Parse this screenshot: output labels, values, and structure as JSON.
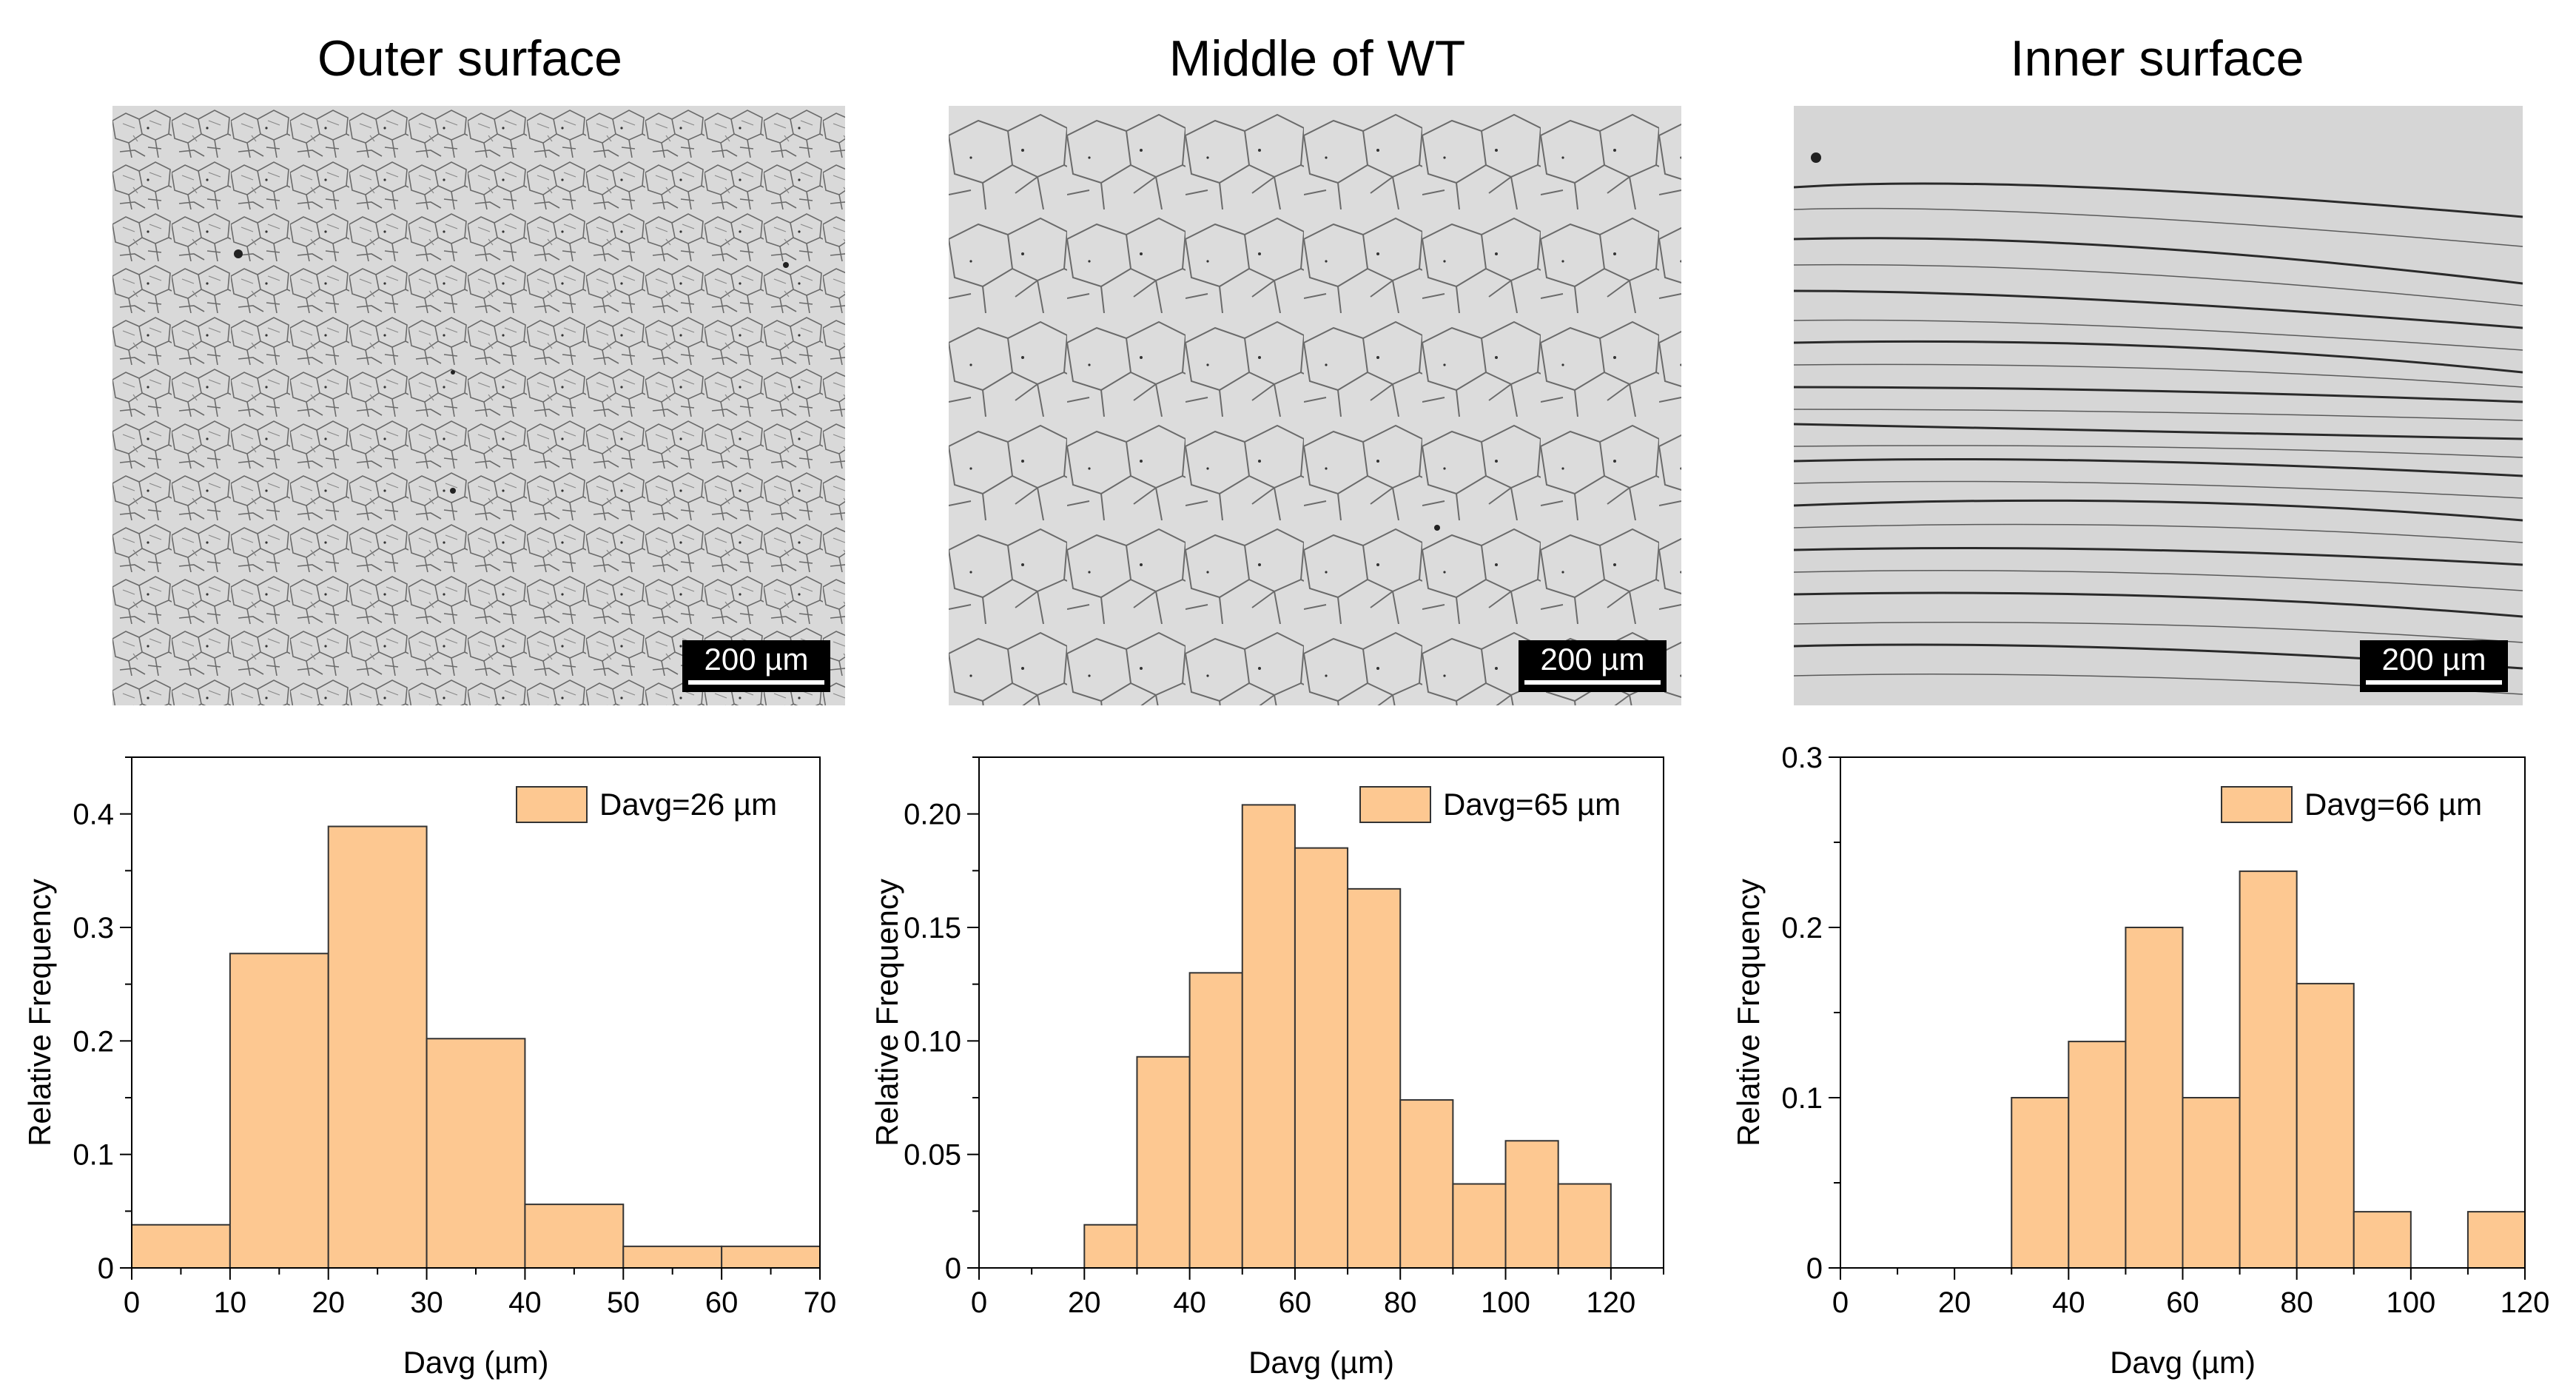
{
  "panels": [
    {
      "title": "Outer surface",
      "scale_bar": "200 µm"
    },
    {
      "title": "Middle of WT",
      "scale_bar": "200 µm"
    },
    {
      "title": "Inner surface",
      "scale_bar": "200 µm"
    }
  ],
  "colors": {
    "bar_fill": "#FDC891",
    "bar_edge": "#333333",
    "micro_bg": "#DADADA",
    "grain_line": "#6a6a6a",
    "band_line": "#2a2a2a"
  },
  "chart_data": [
    {
      "type": "bar",
      "title": "",
      "xlabel": "Davg (µm)",
      "ylabel": "Relative Frequency",
      "legend": "Davg=26 µm",
      "bin_width": 10,
      "bin_starts": [
        0,
        10,
        20,
        30,
        40,
        50,
        60
      ],
      "values": [
        0.038,
        0.277,
        0.389,
        0.202,
        0.056,
        0.019,
        0.019
      ],
      "xlim": [
        0,
        70
      ],
      "ylim": [
        0,
        0.45
      ],
      "xticks": [
        0,
        10,
        20,
        30,
        40,
        50,
        60,
        70
      ],
      "xtick_labels": [
        "0",
        "10",
        "20",
        "30",
        "40",
        "50",
        "60",
        "70"
      ],
      "yticks": [
        0,
        0.1,
        0.2,
        0.3,
        0.4
      ],
      "ytick_labels": [
        "0",
        "0.1",
        "0.2",
        "0.3",
        "0.4"
      ],
      "legend_position": "top-right"
    },
    {
      "type": "bar",
      "title": "",
      "xlabel": "Davg (µm)",
      "ylabel": "Relative Frequency",
      "legend": "Davg=65 µm",
      "bin_width": 10,
      "bin_starts": [
        20,
        30,
        40,
        50,
        60,
        70,
        80,
        90,
        100,
        110
      ],
      "values": [
        0.019,
        0.093,
        0.13,
        0.204,
        0.185,
        0.167,
        0.074,
        0.037,
        0.056,
        0.037
      ],
      "xlim": [
        0,
        130
      ],
      "ylim": [
        0,
        0.225
      ],
      "xticks": [
        0,
        20,
        40,
        60,
        80,
        100,
        120
      ],
      "xtick_labels": [
        "0",
        "20",
        "40",
        "60",
        "80",
        "100",
        "120"
      ],
      "yticks": [
        0,
        0.05,
        0.1,
        0.15,
        0.2
      ],
      "ytick_labels": [
        "0",
        "0.05",
        "0.10",
        "0.15",
        "0.20"
      ],
      "legend_position": "top-right"
    },
    {
      "type": "bar",
      "title": "",
      "xlabel": "Davg (µm)",
      "ylabel": "Relative Frequency",
      "legend": "Davg=66 µm",
      "bin_width": 10,
      "bin_starts": [
        30,
        40,
        50,
        60,
        70,
        80,
        90,
        110
      ],
      "values": [
        0.1,
        0.133,
        0.2,
        0.1,
        0.233,
        0.167,
        0.033,
        0.033
      ],
      "xlim": [
        0,
        120
      ],
      "ylim": [
        0,
        0.3
      ],
      "xticks": [
        0,
        20,
        40,
        60,
        80,
        100,
        120
      ],
      "xtick_labels": [
        "0",
        "20",
        "40",
        "60",
        "80",
        "100",
        "120"
      ],
      "yticks": [
        0,
        0.1,
        0.2,
        0.3
      ],
      "ytick_labels": [
        "0",
        "0.1",
        "0.2",
        "0.3"
      ],
      "legend_position": "top-right"
    }
  ]
}
